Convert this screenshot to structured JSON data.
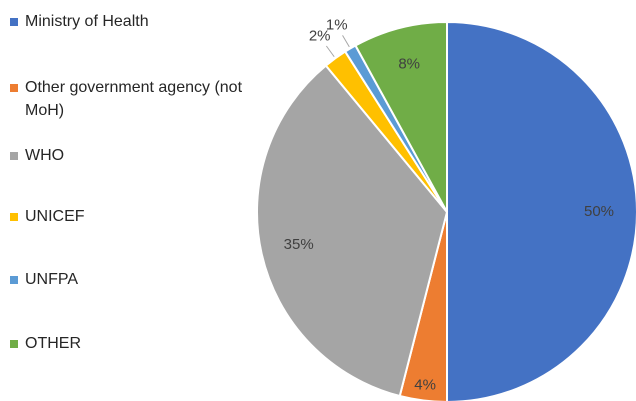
{
  "chart_data": {
    "type": "pie",
    "categories": [
      "Ministry of Health",
      "Other government agency (not MoH)",
      "WHO",
      "UNICEF",
      "UNFPA",
      "OTHER"
    ],
    "values": [
      50,
      4,
      35,
      2,
      1,
      8
    ],
    "value_labels": [
      "50%",
      "4%",
      "35%",
      "2%",
      "1%",
      "8%"
    ],
    "colors": [
      "#4472c4",
      "#ed7d31",
      "#a5a5a5",
      "#ffc000",
      "#5b9bd5",
      "#70ad47"
    ],
    "legend": "left"
  }
}
